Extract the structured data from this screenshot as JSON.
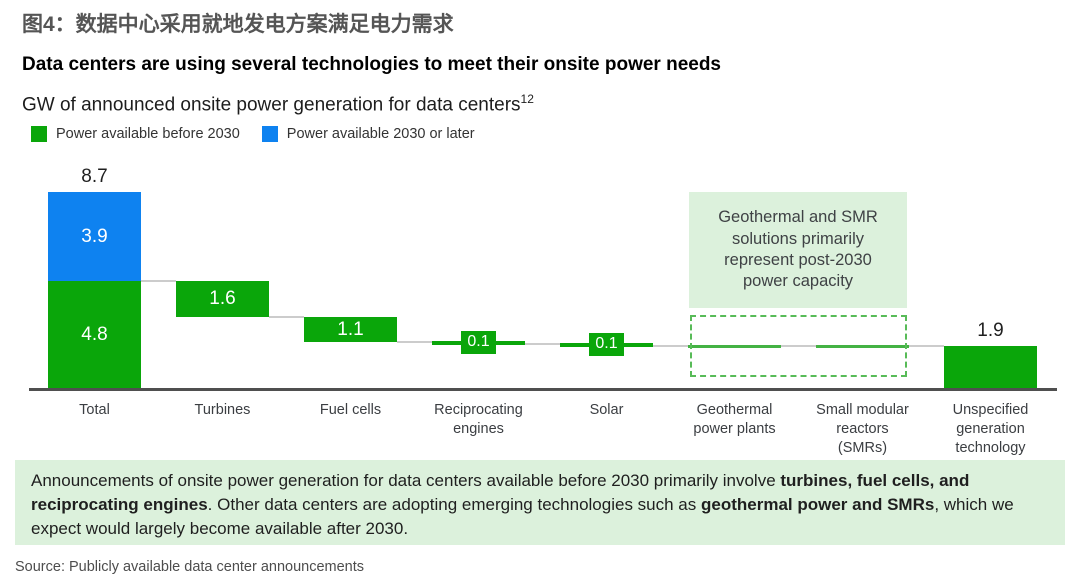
{
  "figure_title": "图4：数据中心采用就地发电方案满足电力需求",
  "header": {
    "title": "Data centers are using several technologies to meet their onsite power needs",
    "subtitle": "GW of announced onsite power generation for data centers",
    "subtitle_superscript": "12"
  },
  "legend": {
    "items": [
      {
        "label": "Power available before 2030",
        "color": "#0aa60a"
      },
      {
        "label": "Power available 2030 or later",
        "color": "#0e82f0"
      }
    ]
  },
  "colors": {
    "green": "#0aa60a",
    "blue": "#0e82f0",
    "light_green_bg": "#dcf1dc",
    "dashed_border": "#58bb58",
    "ghost_line": "#44b244",
    "connector": "#cccccc",
    "axis": "#4f4f4f"
  },
  "chart_data": {
    "type": "bar",
    "subtype": "waterfall",
    "unit": "GW",
    "title": "GW of announced onsite power generation for data centers",
    "categories": [
      "Total",
      "Turbines",
      "Fuel cells",
      "Reciprocating engines",
      "Solar",
      "Geothermal power plants",
      "Small modular reactors (SMRs)",
      "Unspecified generation technology"
    ],
    "series": [
      {
        "name": "Power available before 2030",
        "values": [
          4.8,
          1.6,
          1.1,
          0.1,
          0.1,
          0,
          0,
          1.9
        ]
      },
      {
        "name": "Power available 2030 or later",
        "values": [
          3.9,
          0,
          0,
          0,
          0,
          0,
          0,
          0
        ]
      }
    ],
    "total": 8.7,
    "ylim": [
      0,
      9.5
    ],
    "grid": false,
    "legend_position": "top-left",
    "bars": [
      {
        "label_lines": [
          "Total"
        ],
        "label_above": "8.7",
        "segments": [
          {
            "from": 0,
            "to": 4.8,
            "color": "green",
            "label": "4.8"
          },
          {
            "from": 4.8,
            "to": 8.7,
            "color": "blue",
            "label": "3.9"
          }
        ]
      },
      {
        "label_lines": [
          "Turbines"
        ],
        "segments": [
          {
            "from": 3.2,
            "to": 4.8,
            "color": "green",
            "label": "1.6"
          }
        ]
      },
      {
        "label_lines": [
          "Fuel cells"
        ],
        "segments": [
          {
            "from": 2.1,
            "to": 3.2,
            "color": "green",
            "label": "1.1"
          }
        ]
      },
      {
        "label_lines": [
          "Reciprocating",
          "engines"
        ],
        "segments": [
          {
            "from": 2.0,
            "to": 2.1,
            "color": "green",
            "label": "0.1",
            "chip": true
          }
        ]
      },
      {
        "label_lines": [
          "Solar"
        ],
        "segments": [
          {
            "from": 1.9,
            "to": 2.0,
            "color": "green",
            "label": "0.1",
            "chip": true
          }
        ]
      },
      {
        "label_lines": [
          "Geothermal",
          "power plants"
        ],
        "ghost": true,
        "level": 1.9
      },
      {
        "label_lines": [
          "Small modular",
          "reactors",
          "(SMRs)"
        ],
        "ghost": true,
        "level": 1.9
      },
      {
        "label_lines": [
          "Unspecified",
          "generation",
          "technology"
        ],
        "label_above": "1.9",
        "segments": [
          {
            "from": 0,
            "to": 1.9,
            "color": "green"
          }
        ]
      }
    ],
    "annotation": "Geothermal and SMR solutions primarily represent post-2030 power capacity"
  },
  "footnote": {
    "parts": [
      {
        "text": "Announcements of onsite power generation for data centers available before 2030 primarily involve ",
        "bold": false
      },
      {
        "text": "turbines, fuel cells, and reciprocating engines",
        "bold": true
      },
      {
        "text": ". Other data centers are adopting emerging technologies such as ",
        "bold": false
      },
      {
        "text": "geothermal power and SMRs",
        "bold": true
      },
      {
        "text": ", which we expect would largely become available after 2030.",
        "bold": false
      }
    ]
  },
  "source": "Source: Publicly available data center announcements"
}
